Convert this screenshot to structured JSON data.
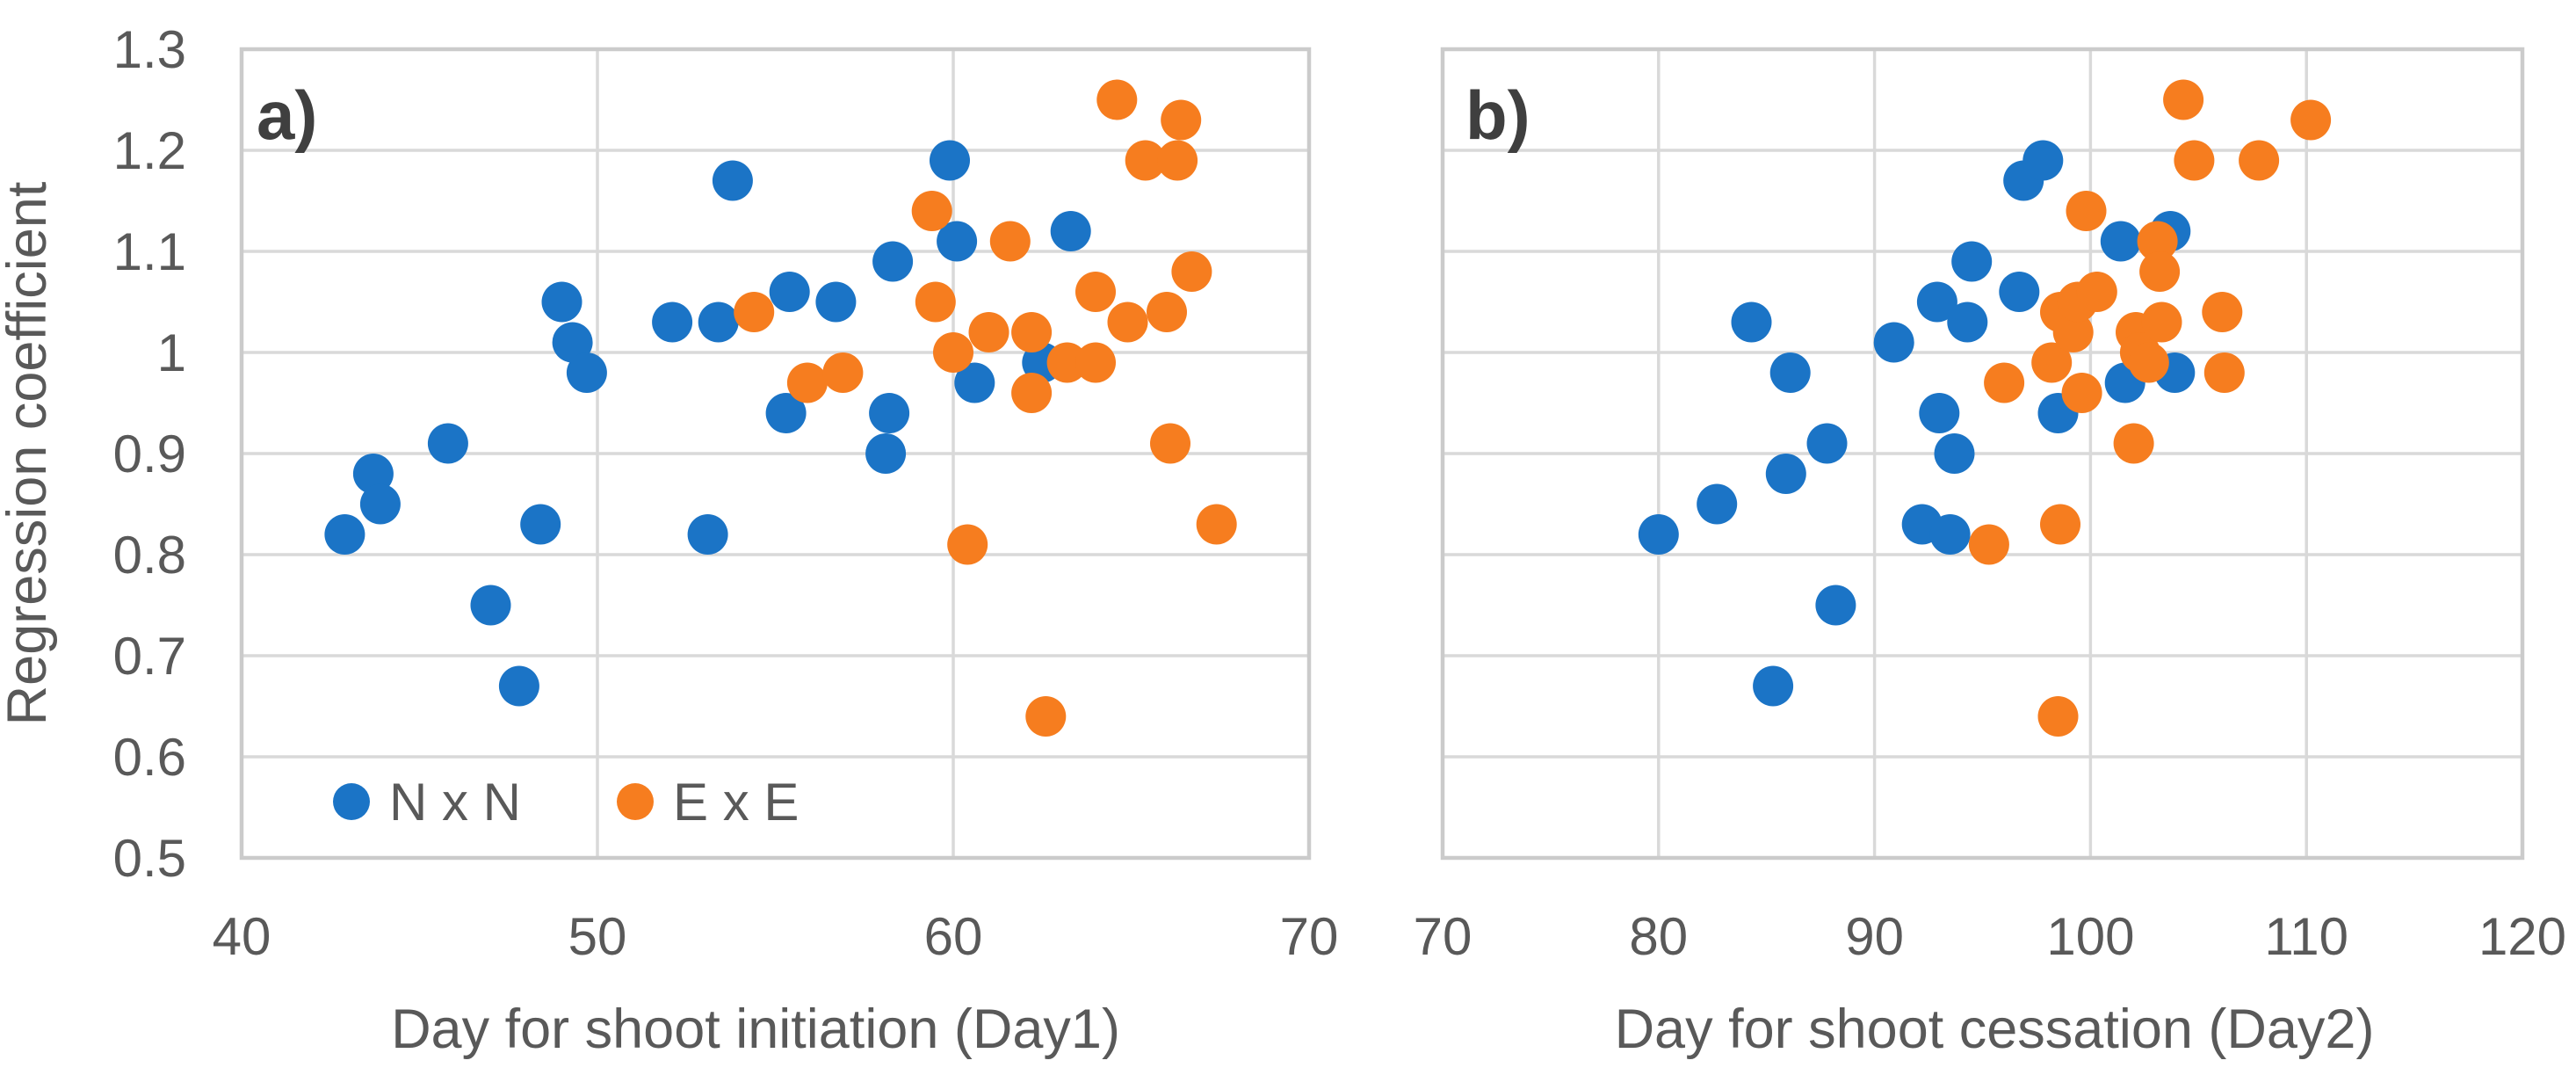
{
  "figure": {
    "background": "#FFFFFF",
    "grid_color": "#D9D9D9",
    "plot_border_color": "#CBCBCB",
    "tick_text_color": "#595959",
    "panel_label_color": "#3F3F3F",
    "y_axis_title": "Regression coefficient"
  },
  "chart_data": [
    {
      "type": "scatter",
      "panel_label": "a)",
      "title": "",
      "xlabel": "Day for shoot initiation (Day1)",
      "ylabel": "Regression coefficient",
      "xlim": [
        40,
        70
      ],
      "ylim": [
        0.5,
        1.3
      ],
      "x_ticks": [
        40,
        50,
        60,
        70
      ],
      "y_ticks": [
        1.3,
        1.2,
        1.1,
        1.0,
        0.9,
        0.8,
        0.7,
        0.6,
        0.5
      ],
      "y_tick_labels": [
        "1.3",
        "1.2",
        "1.1",
        "1",
        "0.9",
        "0.8",
        "0.7",
        "0.6",
        "0.5"
      ],
      "grid": true,
      "legend": {
        "position": "inside-bottom-left",
        "entries": [
          "N x N",
          "E x E"
        ]
      },
      "series": [
        {
          "name": "N x N",
          "color": "#1B74C6",
          "points": [
            [
              42.9,
              0.82
            ],
            [
              43.7,
              0.88
            ],
            [
              43.9,
              0.85
            ],
            [
              45.8,
              0.91
            ],
            [
              47.0,
              0.75
            ],
            [
              47.8,
              0.67
            ],
            [
              48.4,
              0.83
            ],
            [
              49.0,
              1.05
            ],
            [
              49.3,
              1.01
            ],
            [
              49.7,
              0.98
            ],
            [
              52.1,
              1.03
            ],
            [
              53.1,
              0.82
            ],
            [
              53.4,
              1.03
            ],
            [
              53.8,
              1.17
            ],
            [
              55.3,
              0.94
            ],
            [
              55.4,
              1.06
            ],
            [
              56.7,
              1.05
            ],
            [
              58.1,
              0.9
            ],
            [
              58.2,
              0.94
            ],
            [
              58.3,
              1.09
            ],
            [
              59.9,
              1.19
            ],
            [
              60.1,
              1.11
            ],
            [
              60.6,
              0.97
            ],
            [
              62.5,
              0.99
            ],
            [
              63.3,
              1.12
            ]
          ]
        },
        {
          "name": "E x E",
          "color": "#F67D1F",
          "points": [
            [
              54.4,
              1.04
            ],
            [
              55.9,
              0.97
            ],
            [
              56.9,
              0.98
            ],
            [
              59.4,
              1.14
            ],
            [
              59.5,
              1.05
            ],
            [
              60.0,
              1.0
            ],
            [
              60.4,
              0.81
            ],
            [
              61.0,
              1.02
            ],
            [
              61.6,
              1.11
            ],
            [
              62.2,
              0.96
            ],
            [
              62.2,
              1.02
            ],
            [
              62.6,
              0.64
            ],
            [
              63.2,
              0.99
            ],
            [
              64.0,
              0.99
            ],
            [
              64.0,
              1.06
            ],
            [
              64.6,
              1.25
            ],
            [
              64.9,
              1.03
            ],
            [
              65.4,
              1.19
            ],
            [
              66.0,
              1.04
            ],
            [
              66.1,
              0.91
            ],
            [
              66.3,
              1.19
            ],
            [
              66.4,
              1.23
            ],
            [
              66.7,
              1.08
            ],
            [
              67.4,
              0.83
            ]
          ]
        }
      ]
    },
    {
      "type": "scatter",
      "panel_label": "b)",
      "title": "",
      "xlabel": "Day for shoot cessation (Day2)",
      "ylabel": "Regression coefficient",
      "xlim": [
        70,
        120
      ],
      "ylim": [
        0.5,
        1.3
      ],
      "x_ticks": [
        70,
        80,
        90,
        100,
        110,
        120
      ],
      "y_ticks": [
        1.3,
        1.2,
        1.1,
        1.0,
        0.9,
        0.8,
        0.7,
        0.6,
        0.5
      ],
      "y_tick_labels": [
        "1.3",
        "1.2",
        "1.1",
        "1",
        "0.9",
        "0.8",
        "0.7",
        "0.6",
        "0.5"
      ],
      "grid": true,
      "legend": null,
      "series": [
        {
          "name": "N x N",
          "color": "#1B74C6",
          "points": [
            [
              80.0,
              0.82
            ],
            [
              82.7,
              0.85
            ],
            [
              84.3,
              1.03
            ],
            [
              85.3,
              0.67
            ],
            [
              85.9,
              0.88
            ],
            [
              86.1,
              0.98
            ],
            [
              87.8,
              0.91
            ],
            [
              88.2,
              0.75
            ],
            [
              90.9,
              1.01
            ],
            [
              92.2,
              0.83
            ],
            [
              92.9,
              1.05
            ],
            [
              93.0,
              0.94
            ],
            [
              93.5,
              0.82
            ],
            [
              93.7,
              0.9
            ],
            [
              94.3,
              1.03
            ],
            [
              94.5,
              1.09
            ],
            [
              96.7,
              1.06
            ],
            [
              96.9,
              1.17
            ],
            [
              97.8,
              1.19
            ],
            [
              98.5,
              0.94
            ],
            [
              101.4,
              1.11
            ],
            [
              101.6,
              0.97
            ],
            [
              103.7,
              1.12
            ],
            [
              103.9,
              0.98
            ]
          ]
        },
        {
          "name": "E x E",
          "color": "#F67D1F",
          "points": [
            [
              95.3,
              0.81
            ],
            [
              96.0,
              0.97
            ],
            [
              98.2,
              0.99
            ],
            [
              98.5,
              0.64
            ],
            [
              98.6,
              0.83
            ],
            [
              98.6,
              1.04
            ],
            [
              99.2,
              1.02
            ],
            [
              99.4,
              1.05
            ],
            [
              99.6,
              0.96
            ],
            [
              99.8,
              1.14
            ],
            [
              100.3,
              1.06
            ],
            [
              102.0,
              0.91
            ],
            [
              102.1,
              1.02
            ],
            [
              102.3,
              1.0
            ],
            [
              102.7,
              0.99
            ],
            [
              103.1,
              1.11
            ],
            [
              103.2,
              1.08
            ],
            [
              103.3,
              1.03
            ],
            [
              104.3,
              1.25
            ],
            [
              104.8,
              1.19
            ],
            [
              106.1,
              1.04
            ],
            [
              106.2,
              0.98
            ],
            [
              107.8,
              1.19
            ],
            [
              110.2,
              1.23
            ]
          ]
        }
      ]
    }
  ]
}
